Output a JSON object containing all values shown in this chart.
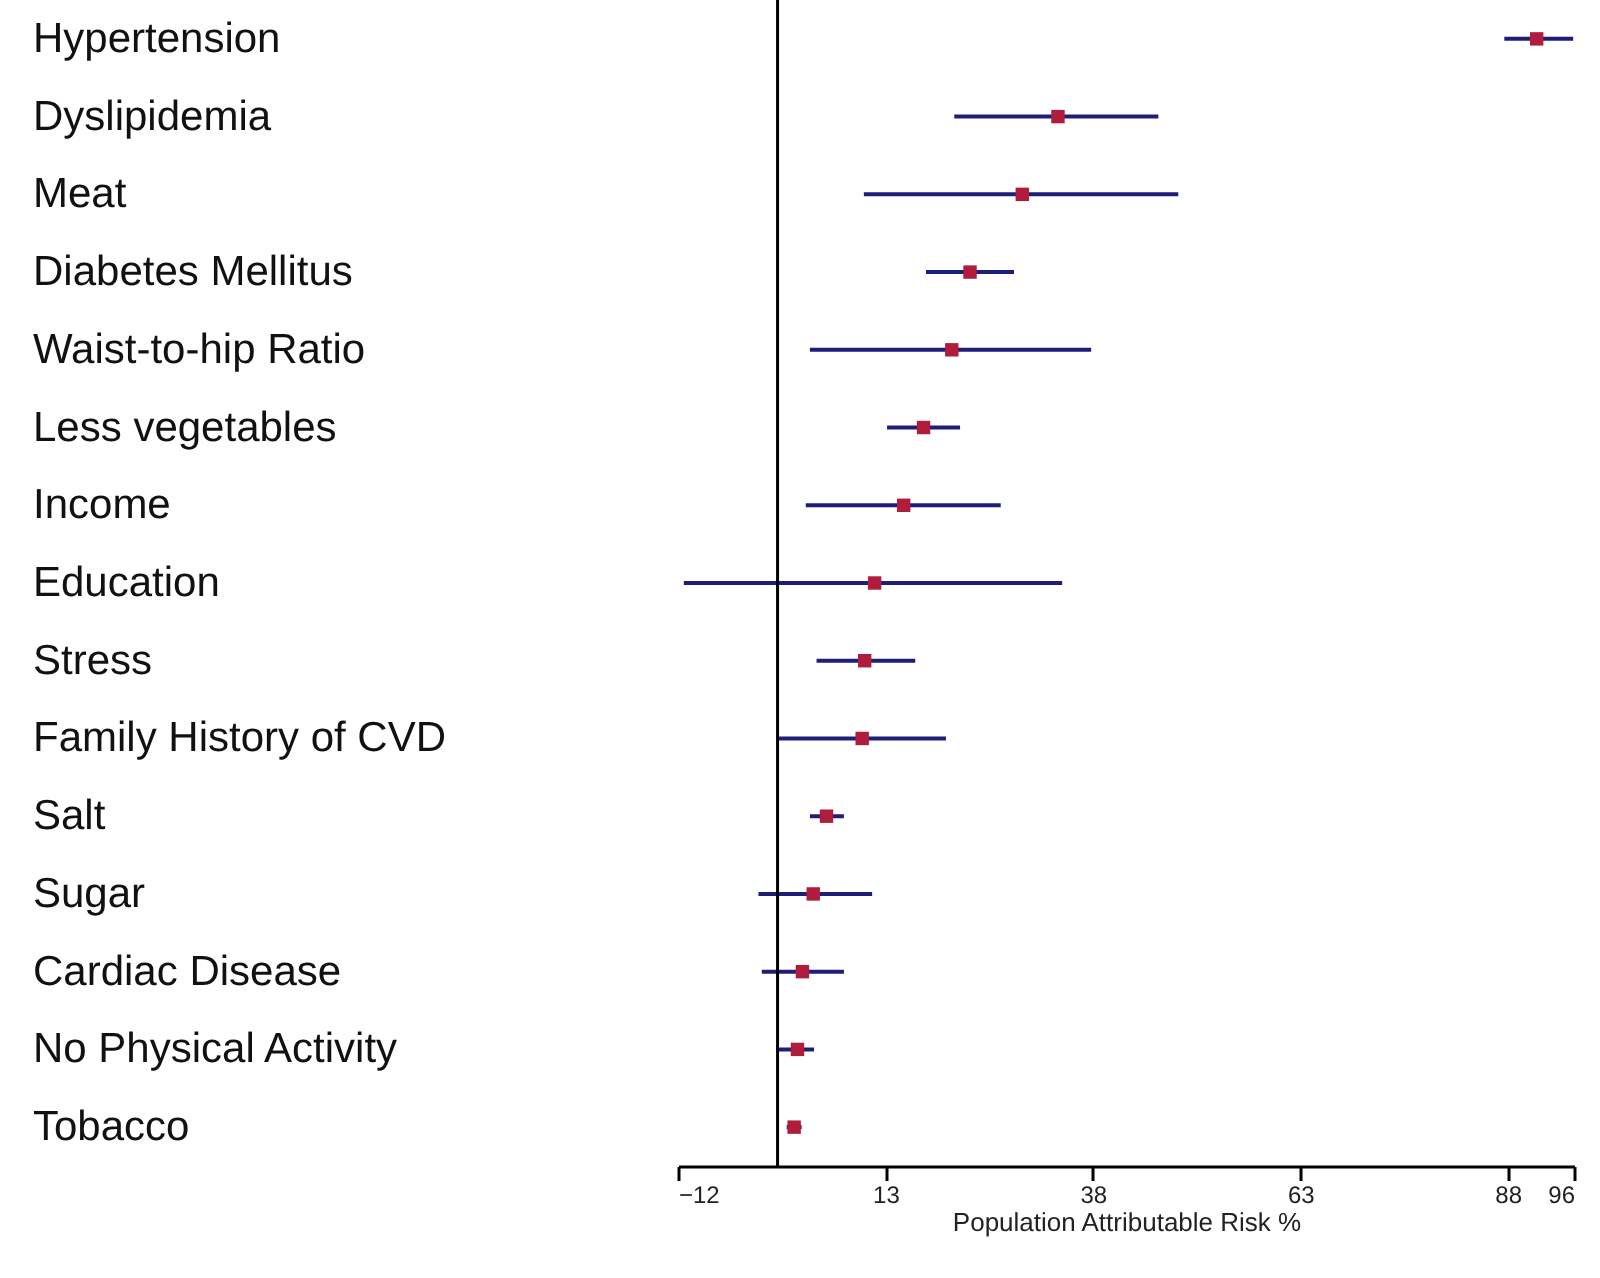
{
  "chart_data": {
    "type": "scatter",
    "orientation": "horizontal",
    "marker": "square",
    "color": "#b01c3c",
    "categories": [
      "Hypertension",
      "Dyslipidemia",
      "Meat",
      "Diabetes Mellitus",
      "Waist-to-hip Ratio",
      "Less vegetables",
      "Income",
      "Education",
      "Stress",
      "Family History of CVD",
      "Salt",
      "Sugar",
      "Cardiac Disease",
      "No Physical Activity",
      "Tobacco"
    ],
    "values": [
      91.5,
      33.8,
      29.5,
      23.2,
      21.0,
      17.6,
      15.2,
      11.7,
      10.5,
      10.2,
      5.9,
      4.3,
      3.0,
      2.4,
      2.0
    ],
    "errors": [
      [
        87.6,
        95.9
      ],
      [
        21.3,
        45.9
      ],
      [
        10.4,
        48.3
      ],
      [
        17.9,
        28.5
      ],
      [
        3.9,
        37.8
      ],
      [
        13.2,
        22.0
      ],
      [
        3.4,
        26.9
      ],
      [
        -11.3,
        34.3
      ],
      [
        4.7,
        16.6
      ],
      [
        0,
        20.3
      ],
      [
        3.9,
        8.0
      ],
      [
        -2.3,
        11.4
      ],
      [
        -1.9,
        8.0
      ],
      [
        0,
        4.4
      ],
      [
        1.1,
        2.9
      ]
    ],
    "xlim": [
      -12,
      96
    ],
    "xticks": [
      -12,
      13,
      38,
      63,
      88,
      96
    ],
    "xlabel": "Population Attributable Risk %",
    "ref_lines": [
      {
        "axis": "x",
        "value": 0,
        "color": "#000000"
      }
    ]
  }
}
